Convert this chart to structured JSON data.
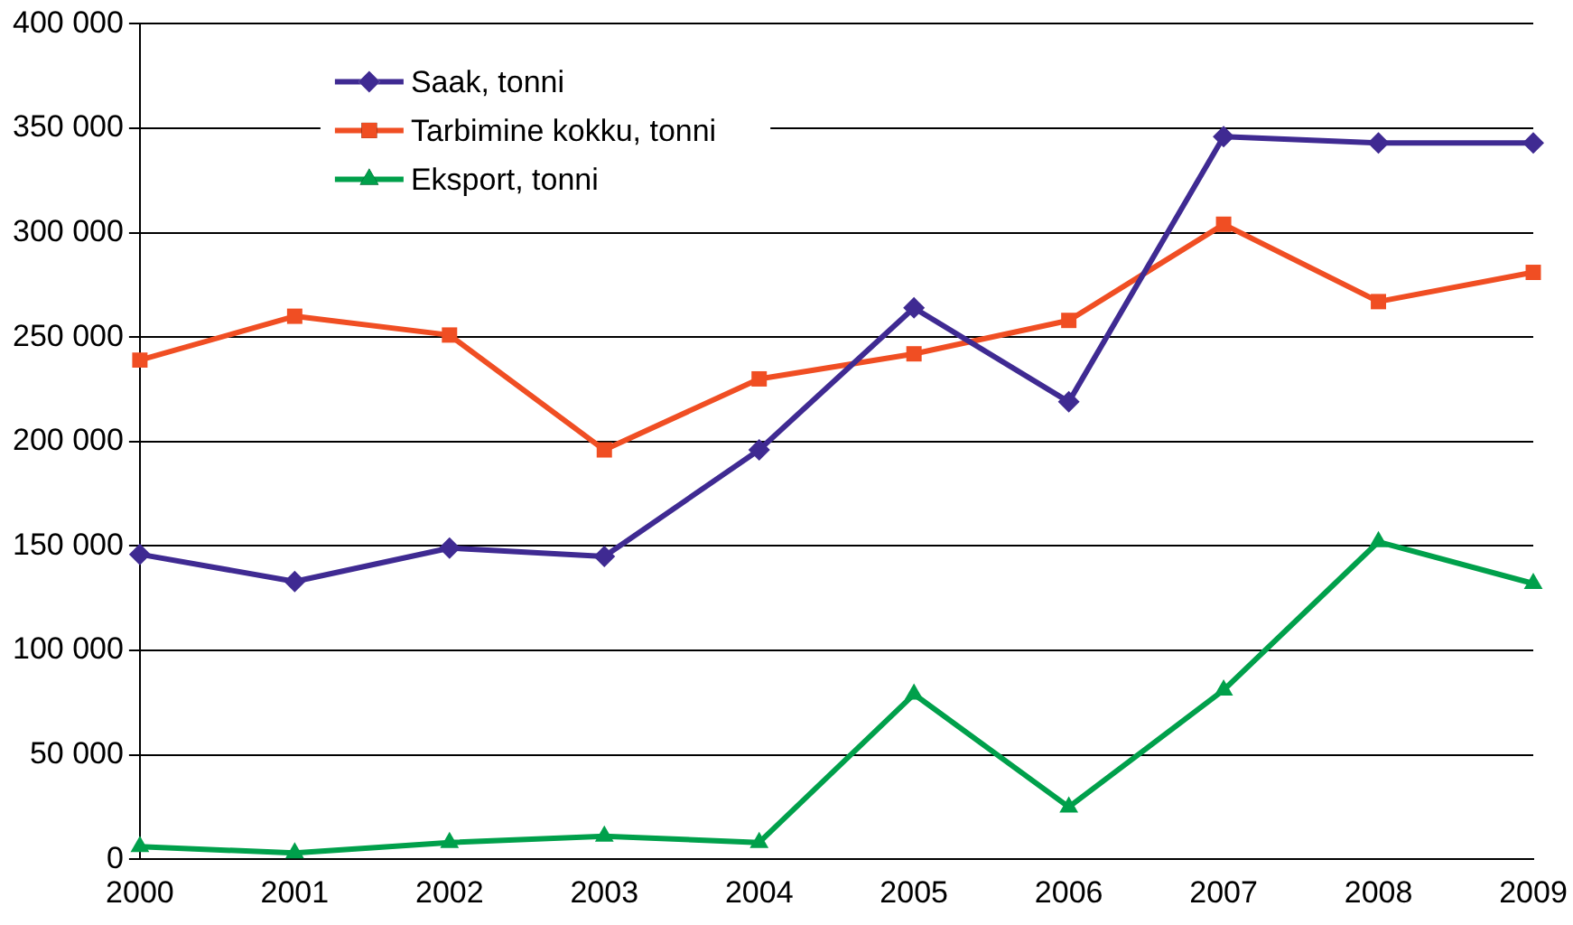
{
  "chart_data": {
    "type": "line",
    "categories": [
      "2000",
      "2001",
      "2002",
      "2003",
      "2004",
      "2005",
      "2006",
      "2007",
      "2008",
      "2009"
    ],
    "series": [
      {
        "name": "Saak, tonni",
        "color": "#3f2a92",
        "marker": "diamond",
        "values": [
          146000,
          133000,
          149000,
          145000,
          196000,
          264000,
          219000,
          346000,
          343000,
          343000
        ]
      },
      {
        "name": "Tarbimine kokku, tonni",
        "color": "#f04e23",
        "marker": "square",
        "values": [
          239000,
          260000,
          251000,
          196000,
          230000,
          242000,
          258000,
          304000,
          267000,
          281000
        ]
      },
      {
        "name": "Eksport, tonni",
        "color": "#00a04b",
        "marker": "triangle",
        "values": [
          6000,
          3000,
          8000,
          11000,
          8000,
          79000,
          25000,
          81000,
          152000,
          132000
        ]
      }
    ],
    "ylim": [
      0,
      400000
    ],
    "yticks": [
      {
        "value": 0,
        "label": "0"
      },
      {
        "value": 50000,
        "label": "50 000"
      },
      {
        "value": 100000,
        "label": "100 000"
      },
      {
        "value": 150000,
        "label": "150 000"
      },
      {
        "value": 200000,
        "label": "200 000"
      },
      {
        "value": 250000,
        "label": "250 000"
      },
      {
        "value": 300000,
        "label": "300 000"
      },
      {
        "value": 350000,
        "label": "350 000"
      },
      {
        "value": 400000,
        "label": "400 000"
      }
    ],
    "grid": "y",
    "legend": "top left",
    "line_style": "solid"
  }
}
